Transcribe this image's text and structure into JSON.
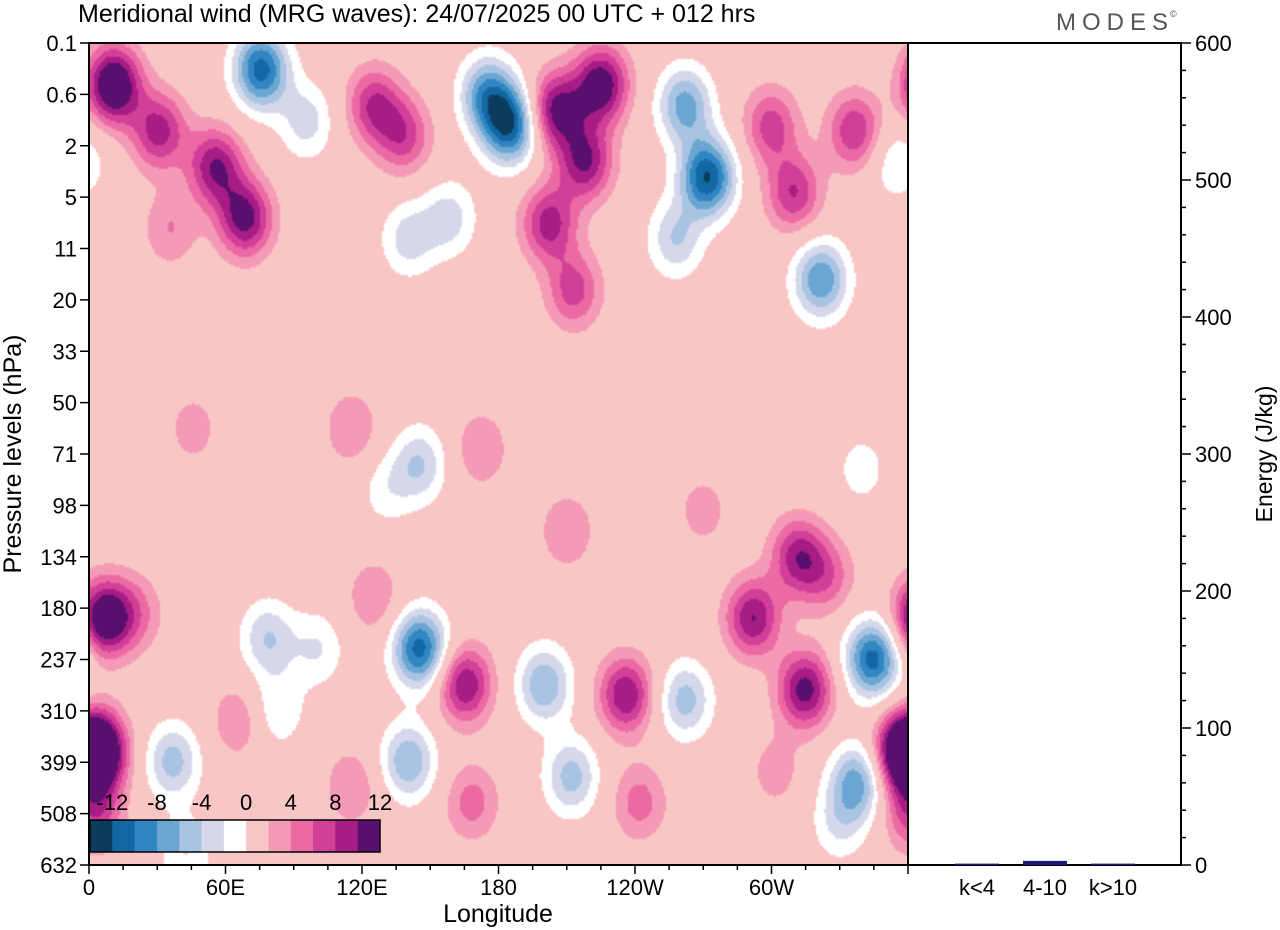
{
  "chart_data": {
    "type": "heatmap",
    "title": "Meridional wind (MRG waves):  24/07/2025  00 UTC  + 012 hrs",
    "xlabel": "Longitude",
    "ylabel": "Pressure levels (hPa)",
    "x_ticks": [
      "0",
      "60E",
      "120E",
      "180",
      "120W",
      "60W"
    ],
    "x_tick_degrees": [
      0,
      60,
      120,
      180,
      240,
      300
    ],
    "x_range_degrees": [
      0,
      360
    ],
    "pressure_levels": [
      "0.1",
      "0.6",
      "2",
      "5",
      "11",
      "20",
      "33",
      "50",
      "71",
      "98",
      "134",
      "180",
      "237",
      "310",
      "399",
      "508",
      "632"
    ],
    "colorbar": {
      "labels": [
        "-12",
        "-8",
        "-4",
        "0",
        "4",
        "8",
        "12"
      ],
      "levels": [
        -14,
        -12,
        -10,
        -8,
        -6,
        -4,
        -2,
        2,
        4,
        6,
        8,
        10,
        12,
        14
      ],
      "colors": [
        "#0b3c5d",
        "#1268a2",
        "#2f86c2",
        "#6aa6d1",
        "#a9c4e2",
        "#d4d8ea",
        "#ffffff",
        "#f9c6c6",
        "#f59ab6",
        "#ec6aa4",
        "#d13f98",
        "#a81c86",
        "#5a0f6e"
      ]
    },
    "field_blobs": [
      {
        "lon": 10,
        "lev": 0.8,
        "v": 14
      },
      {
        "lon": 30,
        "lev": 1.7,
        "v": 9
      },
      {
        "lon": 55,
        "lev": 2.4,
        "v": 10
      },
      {
        "lon": 68,
        "lev": 3.4,
        "v": 11
      },
      {
        "lon": 35,
        "lev": 3.6,
        "v": 4
      },
      {
        "lon": 75,
        "lev": 0.5,
        "v": -13
      },
      {
        "lon": 95,
        "lev": 1.5,
        "v": -5
      },
      {
        "lon": 125,
        "lev": 1.2,
        "v": 8
      },
      {
        "lon": 138,
        "lev": 1.8,
        "v": 7
      },
      {
        "lon": 140,
        "lev": 3.8,
        "v": -5
      },
      {
        "lon": 145,
        "lev": 8.2,
        "v": -6
      },
      {
        "lon": 115,
        "lev": 7.5,
        "v": 4
      },
      {
        "lon": 175,
        "lev": 1.0,
        "v": -10
      },
      {
        "lon": 185,
        "lev": 1.6,
        "v": -13
      },
      {
        "lon": 158,
        "lev": 3.4,
        "v": -5
      },
      {
        "lon": 205,
        "lev": 1.3,
        "v": 11
      },
      {
        "lon": 218,
        "lev": 2.3,
        "v": 10
      },
      {
        "lon": 225,
        "lev": 0.8,
        "v": 12
      },
      {
        "lon": 202,
        "lev": 3.5,
        "v": 9
      },
      {
        "lon": 213,
        "lev": 4.8,
        "v": 7
      },
      {
        "lon": 262,
        "lev": 1.2,
        "v": -9
      },
      {
        "lon": 272,
        "lev": 2.6,
        "v": -14
      },
      {
        "lon": 258,
        "lev": 3.8,
        "v": -6
      },
      {
        "lon": 300,
        "lev": 1.6,
        "v": 7
      },
      {
        "lon": 310,
        "lev": 2.9,
        "v": 8
      },
      {
        "lon": 337,
        "lev": 1.7,
        "v": 8
      },
      {
        "lon": 322,
        "lev": 4.6,
        "v": -10
      },
      {
        "lon": 355,
        "lev": 2.3,
        "v": -4
      },
      {
        "lon": 45,
        "lev": 7.5,
        "v": 3
      },
      {
        "lon": 172,
        "lev": 7.9,
        "v": 4
      },
      {
        "lon": 210,
        "lev": 9.5,
        "v": 4
      },
      {
        "lon": 270,
        "lev": 9.1,
        "v": 3
      },
      {
        "lon": 20,
        "lev": 11.1,
        "v": 4
      },
      {
        "lon": 130,
        "lev": 8.7,
        "v": -3
      },
      {
        "lon": 340,
        "lev": 8.3,
        "v": -3
      },
      {
        "lon": 312,
        "lev": 10.0,
        "v": 9
      },
      {
        "lon": 325,
        "lev": 10.4,
        "v": 5
      },
      {
        "lon": 6,
        "lev": 11.2,
        "v": 13
      },
      {
        "lon": 4,
        "lev": 13.8,
        "v": 12
      },
      {
        "lon": 2,
        "lev": 15.0,
        "v": 7
      },
      {
        "lon": 36,
        "lev": 14.0,
        "v": -7
      },
      {
        "lon": 42,
        "lev": 15.8,
        "v": -4
      },
      {
        "lon": 65,
        "lev": 13.2,
        "v": 4
      },
      {
        "lon": 78,
        "lev": 11.6,
        "v": -6
      },
      {
        "lon": 82,
        "lev": 13.0,
        "v": -4
      },
      {
        "lon": 100,
        "lev": 11.8,
        "v": -4
      },
      {
        "lon": 115,
        "lev": 14.5,
        "v": 4
      },
      {
        "lon": 125,
        "lev": 10.8,
        "v": 4
      },
      {
        "lon": 145,
        "lev": 11.8,
        "v": -13
      },
      {
        "lon": 140,
        "lev": 14.0,
        "v": -8
      },
      {
        "lon": 165,
        "lev": 12.5,
        "v": 10
      },
      {
        "lon": 168,
        "lev": 14.8,
        "v": 5
      },
      {
        "lon": 200,
        "lev": 12.5,
        "v": -8
      },
      {
        "lon": 212,
        "lev": 14.3,
        "v": -7
      },
      {
        "lon": 236,
        "lev": 12.7,
        "v": 10
      },
      {
        "lon": 242,
        "lev": 14.8,
        "v": 5
      },
      {
        "lon": 262,
        "lev": 12.8,
        "v": -7
      },
      {
        "lon": 292,
        "lev": 11.2,
        "v": 10
      },
      {
        "lon": 315,
        "lev": 12.6,
        "v": 11
      },
      {
        "lon": 345,
        "lev": 12.0,
        "v": -13
      },
      {
        "lon": 338,
        "lev": 14.4,
        "v": -9
      },
      {
        "lon": 358,
        "lev": 13.8,
        "v": 12
      },
      {
        "lon": 302,
        "lev": 14.2,
        "v": 3
      },
      {
        "lon": 330,
        "lev": 15.2,
        "v": -4
      }
    ],
    "energy_axis": {
      "label": "Energy (J/kg)",
      "ticks": [
        "0",
        "100",
        "200",
        "300",
        "400",
        "500",
        "600"
      ],
      "range": [
        0,
        600
      ]
    },
    "energy_bars": {
      "categories": [
        "k<4",
        "4-10",
        "k>10"
      ],
      "values": [
        1,
        3,
        1
      ],
      "color": "#1a1a7a"
    }
  },
  "logo": {
    "text": "MODES",
    "mark": "©"
  }
}
